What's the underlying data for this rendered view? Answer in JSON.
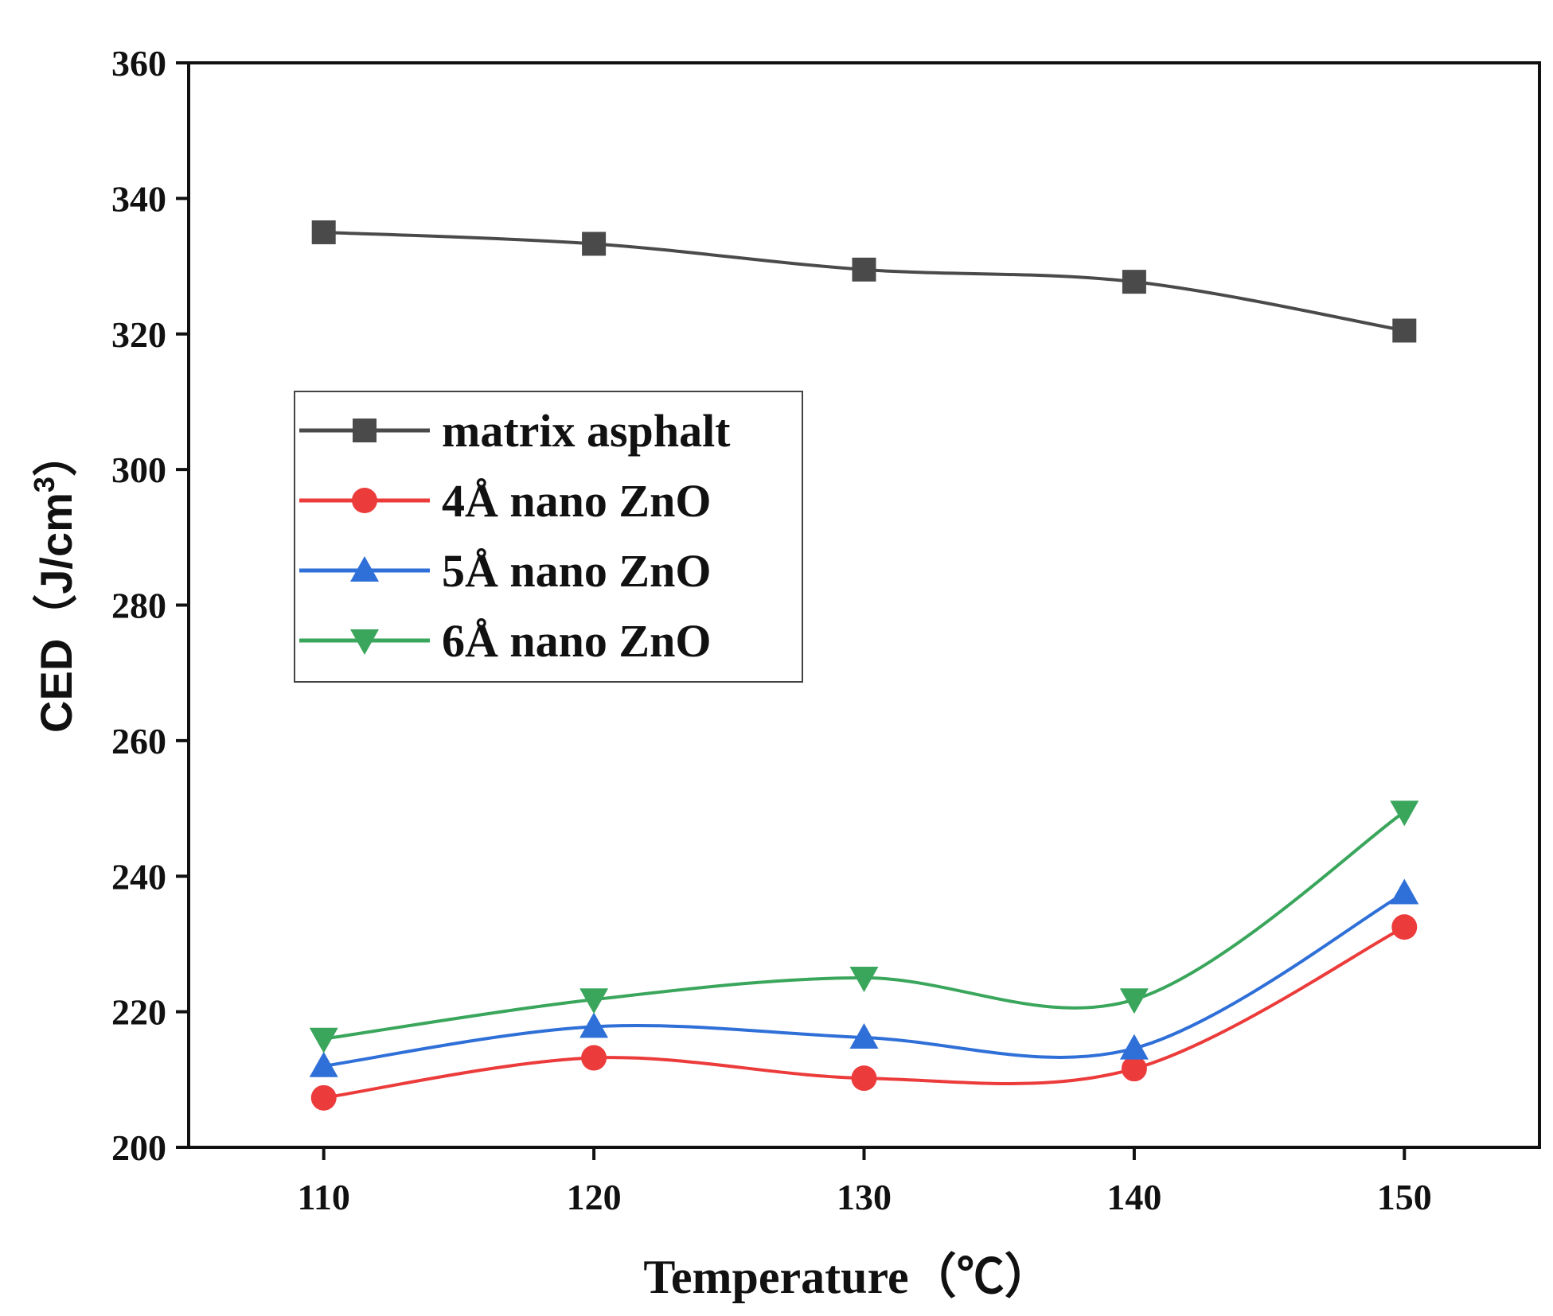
{
  "chart_data": {
    "type": "line",
    "title": "",
    "xlabel": "Temperature（℃）",
    "ylabel": "CED（J/cm",
    "ylabel_superscript": "3",
    "ylabel_close": "）",
    "x": [
      110,
      120,
      130,
      140,
      150
    ],
    "xlim": [
      105,
      155
    ],
    "ylim": [
      200,
      360
    ],
    "x_ticks": [
      110,
      120,
      130,
      140,
      150
    ],
    "y_ticks": [
      200,
      220,
      240,
      260,
      280,
      300,
      320,
      340,
      360
    ],
    "grid": false,
    "legend_position": "center-left",
    "series": [
      {
        "name": "matrix asphalt",
        "values": [
          335.0,
          333.3,
          329.5,
          327.7,
          320.5
        ],
        "color": "#4a4a4a",
        "marker": "square"
      },
      {
        "name": "4Å nano ZnO",
        "values": [
          207.3,
          213.2,
          210.2,
          211.6,
          232.5
        ],
        "color": "#ec3b3b",
        "marker": "circle"
      },
      {
        "name": "5Å nano ZnO",
        "values": [
          212.0,
          217.8,
          216.2,
          214.6,
          237.5
        ],
        "color": "#2f6fd8",
        "marker": "triangle-up"
      },
      {
        "name": "6Å nano ZnO",
        "values": [
          216.0,
          221.8,
          225.0,
          221.8,
          249.5
        ],
        "color": "#3aa65c",
        "marker": "triangle-down"
      }
    ]
  }
}
